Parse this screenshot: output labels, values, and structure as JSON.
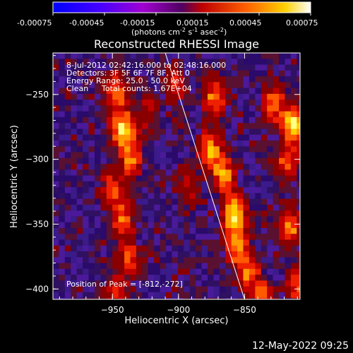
{
  "colorbar": {
    "ticks": [
      "-0.00075",
      "-0.00045",
      "-0.00015",
      "0.00015",
      "0.00045",
      "0.00075"
    ],
    "units": "(photons cm",
    "units_exp1": "-2",
    "units_mid": " s",
    "units_exp2": "-1",
    "units_tail": " asec",
    "units_exp3": "-2",
    "units_close": ")"
  },
  "annotations": {
    "time_range": "8-Jul-2012 02:42:16.000 to 02:48:16.000",
    "detectors": "Detectors: 3F 5F 6F 7F 8F, Att 0",
    "energy": "Energy Range: 25.0 - 50.0 keV",
    "algorithm": "Clean",
    "counts": "Total counts: 1.67E+04",
    "peak": "Position of Peak = [-812,-272]"
  },
  "timestamp": "12-May-2022 09:25",
  "chart_data": {
    "type": "heatmap",
    "title": "Reconstructed RHESSI Image",
    "xlabel": "Heliocentric X (arcsec)",
    "ylabel": "Heliocentric Y (arcsec)",
    "xlim": [
      -995,
      -808
    ],
    "ylim": [
      -408,
      -218
    ],
    "x_ticks": [
      -950,
      -900,
      -850
    ],
    "y_ticks": [
      -250,
      -300,
      -350,
      -400
    ],
    "colorbar_range": [
      -0.00075,
      0.00075
    ],
    "colormap": "red-temperature",
    "grid": false,
    "peak": [
      -812,
      -272
    ],
    "limb_line": [
      [
        -910,
        -218
      ],
      [
        -850,
        -408
      ]
    ],
    "hot_spots": [
      {
        "x": -944,
        "y": -275,
        "level": 1.0
      },
      {
        "x": -950,
        "y": -245,
        "level": 0.7
      },
      {
        "x": -938,
        "y": -298,
        "level": 0.6
      },
      {
        "x": -952,
        "y": -320,
        "level": 0.55
      },
      {
        "x": -945,
        "y": -345,
        "level": 0.6
      },
      {
        "x": -940,
        "y": -375,
        "level": 0.55
      },
      {
        "x": -950,
        "y": -400,
        "level": 0.5
      },
      {
        "x": -875,
        "y": -250,
        "level": 0.7
      },
      {
        "x": -878,
        "y": -290,
        "level": 0.75
      },
      {
        "x": -868,
        "y": -310,
        "level": 0.7
      },
      {
        "x": -860,
        "y": -340,
        "level": 0.95
      },
      {
        "x": -858,
        "y": -365,
        "level": 0.7
      },
      {
        "x": -850,
        "y": -385,
        "level": 0.65
      },
      {
        "x": -838,
        "y": -405,
        "level": 0.6
      },
      {
        "x": -830,
        "y": -255,
        "level": 0.7
      },
      {
        "x": -815,
        "y": -272,
        "level": 1.0
      },
      {
        "x": -820,
        "y": -300,
        "level": 0.6
      },
      {
        "x": -818,
        "y": -350,
        "level": 0.7
      },
      {
        "x": -812,
        "y": -395,
        "level": 0.65
      },
      {
        "x": -895,
        "y": -320,
        "level": 0.4
      },
      {
        "x": -905,
        "y": -240,
        "level": 0.45
      },
      {
        "x": -925,
        "y": -260,
        "level": 0.4
      }
    ]
  }
}
